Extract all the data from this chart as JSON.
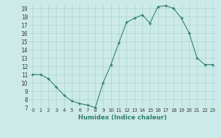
{
  "x": [
    0,
    1,
    2,
    3,
    4,
    5,
    6,
    7,
    8,
    9,
    10,
    11,
    12,
    13,
    14,
    15,
    16,
    17,
    18,
    19,
    20,
    21,
    22,
    23
  ],
  "y": [
    11.0,
    11.0,
    10.5,
    9.5,
    8.5,
    7.8,
    7.5,
    7.3,
    7.0,
    10.0,
    12.2,
    14.8,
    17.3,
    17.8,
    18.2,
    17.2,
    19.2,
    19.3,
    19.0,
    17.8,
    16.0,
    13.0,
    12.2,
    12.2
  ],
  "xlabel": "Humidex (Indice chaleur)",
  "ylim": [
    7,
    19.5
  ],
  "xlim": [
    -0.5,
    23.5
  ],
  "yticks": [
    7,
    8,
    9,
    10,
    11,
    12,
    13,
    14,
    15,
    16,
    17,
    18,
    19
  ],
  "xticks": [
    0,
    1,
    2,
    3,
    4,
    5,
    6,
    7,
    8,
    9,
    10,
    11,
    12,
    13,
    14,
    15,
    16,
    17,
    18,
    19,
    20,
    21,
    22,
    23
  ],
  "line_color": "#2e7d6e",
  "marker": "+",
  "bg_color": "#cceae8",
  "grid_color": "#aad4d2",
  "label_color": "#2e7d6e"
}
